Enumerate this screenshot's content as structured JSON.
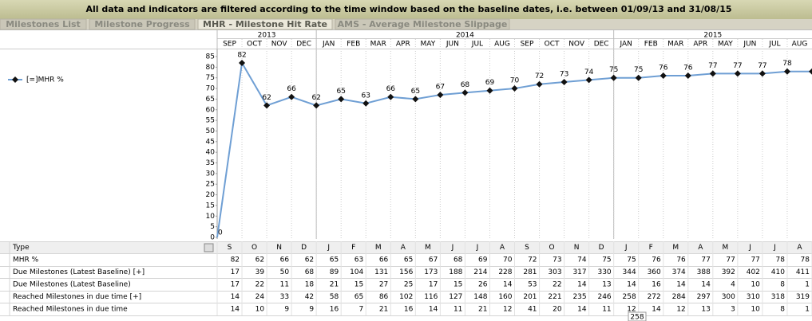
{
  "banner": "All data and indicators are filtered according to the time window based on the baseline dates, i.e. between 01/09/13 and 31/08/15",
  "tabs": [
    "Milestones List",
    "Milestone Progress",
    "MHR - Milestone Hit Rate",
    "AMS - Average Milestone Slippage"
  ],
  "chart_data": {
    "type": "line",
    "years": [
      "2013",
      "2014",
      "2015"
    ],
    "categories": [
      "SEP",
      "OCT",
      "NOV",
      "DEC",
      "JAN",
      "FEB",
      "MAR",
      "APR",
      "MAY",
      "JUN",
      "JUL",
      "AUG",
      "SEP",
      "OCT",
      "NOV",
      "DEC",
      "JAN",
      "FEB",
      "MAR",
      "APR",
      "MAY",
      "JUN",
      "JUL",
      "AUG"
    ],
    "start_value": 0,
    "series": [
      {
        "name": "[=]MHR %",
        "color": "#6f9fd4",
        "values": [
          82,
          62,
          66,
          62,
          65,
          63,
          66,
          65,
          67,
          68,
          69,
          70,
          72,
          73,
          74,
          75,
          75,
          76,
          76,
          77,
          77,
          77,
          78,
          78
        ]
      }
    ],
    "ylim": [
      0,
      85
    ],
    "yticks": [
      0,
      5,
      10,
      15,
      20,
      25,
      30,
      35,
      40,
      45,
      50,
      55,
      60,
      65,
      70,
      75,
      80,
      85
    ],
    "grid": true
  },
  "table": {
    "header": [
      "Type",
      "S",
      "O",
      "N",
      "D",
      "J",
      "F",
      "M",
      "A",
      "M",
      "J",
      "J",
      "A",
      "S",
      "O",
      "N",
      "D",
      "J",
      "F",
      "M",
      "A",
      "M",
      "J",
      "J",
      "A"
    ],
    "rows": [
      {
        "label": "MHR %",
        "values": [
          82,
          62,
          66,
          62,
          65,
          63,
          66,
          65,
          67,
          68,
          69,
          70,
          72,
          73,
          74,
          75,
          75,
          76,
          76,
          77,
          77,
          77,
          78,
          78
        ]
      },
      {
        "label": "Due Milestones (Latest Baseline) [+]",
        "values": [
          17,
          39,
          50,
          68,
          89,
          104,
          131,
          156,
          173,
          188,
          214,
          228,
          281,
          303,
          317,
          330,
          344,
          360,
          374,
          388,
          392,
          402,
          410,
          411
        ]
      },
      {
        "label": "Due Milestones (Latest Baseline)",
        "values": [
          17,
          22,
          11,
          18,
          21,
          15,
          27,
          25,
          17,
          15,
          26,
          14,
          53,
          22,
          14,
          13,
          14,
          16,
          14,
          14,
          4,
          10,
          8,
          1
        ]
      },
      {
        "label": "Reached Milestones in due time [+]",
        "values": [
          14,
          24,
          33,
          42,
          58,
          65,
          86,
          102,
          116,
          127,
          148,
          160,
          201,
          221,
          235,
          246,
          258,
          272,
          284,
          297,
          300,
          310,
          318,
          319
        ]
      },
      {
        "label": "Reached Milestones in due time",
        "values": [
          14,
          10,
          9,
          9,
          16,
          7,
          21,
          16,
          14,
          11,
          21,
          12,
          41,
          20,
          14,
          11,
          12,
          14,
          12,
          13,
          3,
          10,
          8,
          1
        ]
      }
    ],
    "tooltip": "258"
  }
}
